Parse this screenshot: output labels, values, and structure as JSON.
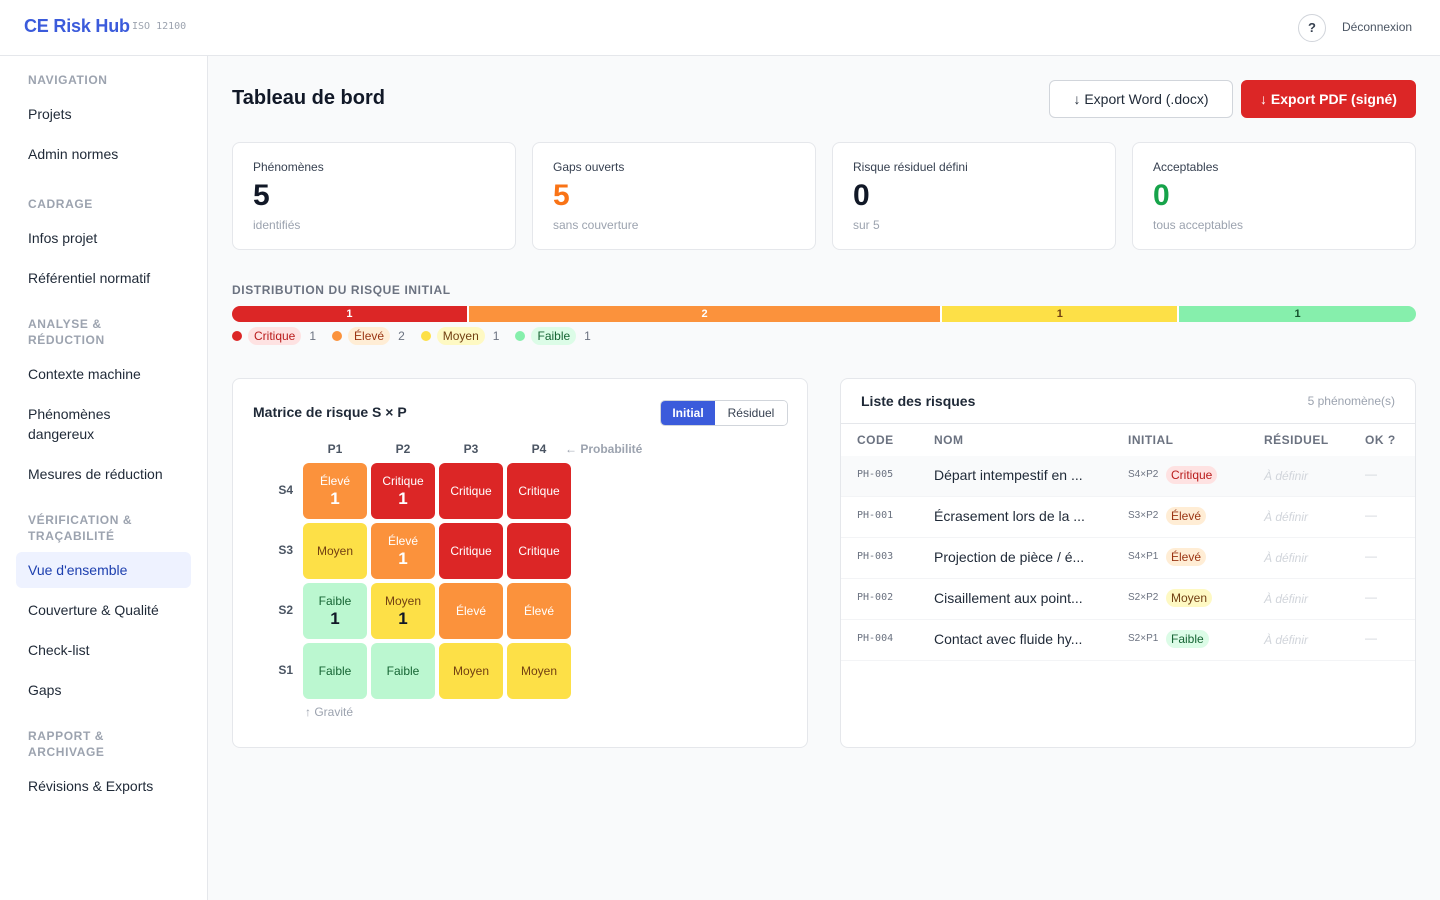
{
  "app": {
    "title": "CE Risk Hub",
    "tag": "ISO 12100"
  },
  "topbar": {
    "help_label": "?",
    "logout_label": "Déconnexion"
  },
  "sidebar": {
    "sections": [
      {
        "label": "NAVIGATION",
        "items": [
          "Projets",
          "Admin normes"
        ]
      },
      {
        "label": "CADRAGE",
        "items": [
          "Infos projet",
          "Référentiel normatif"
        ]
      },
      {
        "label": "ANALYSE & RÉDUCTION",
        "items": [
          "Contexte machine",
          "Phénomènes dangereux",
          "Mesures de réduction"
        ]
      },
      {
        "label": "VÉRIFICATION & TRAÇABILITÉ",
        "items": [
          "Vue d'ensemble",
          "Couverture & Qualité",
          "Check-list",
          "Gaps"
        ]
      },
      {
        "label": "RAPPORT & ARCHIVAGE",
        "items": [
          "Révisions & Exports"
        ]
      }
    ],
    "active_item": "Vue d'ensemble"
  },
  "header": {
    "title": "Tableau de bord",
    "export_word_label": "↓ Export Word (.docx)",
    "export_pdf_label": "↓ Export PDF (signé)"
  },
  "stats": [
    {
      "label": "Phénomènes",
      "value": "5",
      "sub": "identifiés",
      "color": "#111827"
    },
    {
      "label": "Gaps ouverts",
      "value": "5",
      "sub": "sans couverture",
      "color": "#f97316"
    },
    {
      "label": "Risque résiduel défini",
      "value": "0",
      "sub": "sur 5",
      "color": "#111827"
    },
    {
      "label": "Acceptables",
      "value": "0",
      "sub": "tous acceptables",
      "color": "#16a34a"
    }
  ],
  "distribution": {
    "title": "DISTRIBUTION DU RISQUE INITIAL",
    "segments": [
      {
        "label": "Critique",
        "count": 1,
        "color": "#dc2626",
        "text_color": "#ffffff",
        "pill_bg": "#fee2e2",
        "pill_fg": "#b91c1c"
      },
      {
        "label": "Élevé",
        "count": 2,
        "color": "#fb923c",
        "text_color": "#ffffff",
        "pill_bg": "#ffedd5",
        "pill_fg": "#9a3412"
      },
      {
        "label": "Moyen",
        "count": 1,
        "color": "#fde047",
        "text_color": "#713f12",
        "pill_bg": "#fef9c3",
        "pill_fg": "#713f12"
      },
      {
        "label": "Faible",
        "count": 1,
        "color": "#86efac",
        "text_color": "#14532d",
        "pill_bg": "#dcfce7",
        "pill_fg": "#166534"
      }
    ]
  },
  "matrix": {
    "title": "Matrice de risque S × P",
    "toggle": {
      "on": "Initial",
      "off": "Résiduel"
    },
    "columns": [
      "P1",
      "P2",
      "P3",
      "P4"
    ],
    "prob_label": "← Probabilité",
    "gravity_label": "↑ Gravité",
    "rows": [
      {
        "label": "S4",
        "cells": [
          {
            "level": "Élevé",
            "count": "1"
          },
          {
            "level": "Critique",
            "count": "1"
          },
          {
            "level": "Critique",
            "count": ""
          },
          {
            "level": "Critique",
            "count": ""
          }
        ]
      },
      {
        "label": "S3",
        "cells": [
          {
            "level": "Moyen",
            "count": ""
          },
          {
            "level": "Élevé",
            "count": "1"
          },
          {
            "level": "Critique",
            "count": ""
          },
          {
            "level": "Critique",
            "count": ""
          }
        ]
      },
      {
        "label": "S2",
        "cells": [
          {
            "level": "Faible",
            "count": "1"
          },
          {
            "level": "Moyen",
            "count": "1"
          },
          {
            "level": "Élevé",
            "count": ""
          },
          {
            "level": "Élevé",
            "count": ""
          }
        ]
      },
      {
        "label": "S1",
        "cells": [
          {
            "level": "Faible",
            "count": ""
          },
          {
            "level": "Faible",
            "count": ""
          },
          {
            "level": "Moyen",
            "count": ""
          },
          {
            "level": "Moyen",
            "count": ""
          }
        ]
      }
    ],
    "level_colors": {
      "Critique": {
        "bg": "#dc2626",
        "fg": "#ffffff"
      },
      "Élevé": {
        "bg": "#fb923c",
        "fg": "#ffffff"
      },
      "Moyen": {
        "bg": "#fde047",
        "fg": "#713f12"
      },
      "Faible": {
        "bg": "#bbf7d0",
        "fg": "#166534"
      }
    }
  },
  "risk_list": {
    "title": "Liste des risques",
    "count_label": "5 phénomène(s)",
    "columns": [
      "CODE",
      "NOM",
      "INITIAL",
      "RÉSIDUEL",
      "OK ?"
    ],
    "rows": [
      {
        "code": "PH-005",
        "name": "Départ intempestif en ...",
        "sp": "S4×P2",
        "level": "Critique",
        "residual": "À définir",
        "ok": "—"
      },
      {
        "code": "PH-001",
        "name": "Écrasement lors de la ...",
        "sp": "S3×P2",
        "level": "Élevé",
        "residual": "À définir",
        "ok": "—"
      },
      {
        "code": "PH-003",
        "name": "Projection de pièce / é...",
        "sp": "S4×P1",
        "level": "Élevé",
        "residual": "À définir",
        "ok": "—"
      },
      {
        "code": "PH-002",
        "name": "Cisaillement aux point...",
        "sp": "S2×P2",
        "level": "Moyen",
        "residual": "À définir",
        "ok": "—"
      },
      {
        "code": "PH-004",
        "name": "Contact avec fluide hy...",
        "sp": "S2×P1",
        "level": "Faible",
        "residual": "À définir",
        "ok": "—"
      }
    ]
  }
}
